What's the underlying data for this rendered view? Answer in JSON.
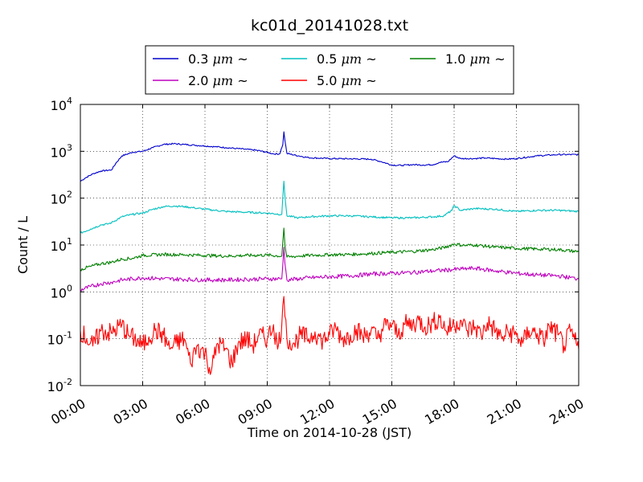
{
  "chart_data": {
    "type": "line",
    "title": "kc01d_20141028.txt",
    "xlabel": "Time on 2014-10-28 (JST)",
    "ylabel": "Count / L",
    "y_scale": "log",
    "ylim": [
      0.01,
      10000
    ],
    "y_ticks": [
      {
        "base": "10",
        "exp": "-2",
        "value": 0.01
      },
      {
        "base": "10",
        "exp": "-1",
        "value": 0.1
      },
      {
        "base": "10",
        "exp": "0",
        "value": 1
      },
      {
        "base": "10",
        "exp": "1",
        "value": 10
      },
      {
        "base": "10",
        "exp": "2",
        "value": 100
      },
      {
        "base": "10",
        "exp": "3",
        "value": 1000
      },
      {
        "base": "10",
        "exp": "4",
        "value": 10000
      }
    ],
    "x_ticks": [
      "00:00",
      "03:00",
      "06:00",
      "09:00",
      "12:00",
      "15:00",
      "18:00",
      "21:00",
      "24:00"
    ],
    "grid": true,
    "legend_position": "top-center",
    "series": [
      {
        "name": "0.3 μm ~",
        "legend_num": "0.3",
        "legend_unit": "μm",
        "legend_tail": "~",
        "color": "#0000cc",
        "points": [
          [
            0,
            230
          ],
          [
            0.3,
            280
          ],
          [
            0.6,
            330
          ],
          [
            1.0,
            380
          ],
          [
            1.5,
            400
          ],
          [
            1.7,
            550
          ],
          [
            2.0,
            800
          ],
          [
            2.5,
            950
          ],
          [
            3.0,
            1000
          ],
          [
            3.5,
            1200
          ],
          [
            4.0,
            1400
          ],
          [
            4.5,
            1450
          ],
          [
            5.0,
            1400
          ],
          [
            5.5,
            1350
          ],
          [
            6.0,
            1300
          ],
          [
            6.5,
            1250
          ],
          [
            7.0,
            1200
          ],
          [
            7.5,
            1150
          ],
          [
            8.0,
            1100
          ],
          [
            8.5,
            1050
          ],
          [
            9.0,
            950
          ],
          [
            9.3,
            880
          ],
          [
            9.6,
            880
          ],
          [
            9.75,
            1400
          ],
          [
            9.8,
            2600
          ],
          [
            9.85,
            1700
          ],
          [
            9.95,
            900
          ],
          [
            10.5,
            800
          ],
          [
            11.0,
            730
          ],
          [
            12.0,
            700
          ],
          [
            13.0,
            690
          ],
          [
            14.0,
            680
          ],
          [
            14.5,
            600
          ],
          [
            15.0,
            510
          ],
          [
            15.5,
            500
          ],
          [
            16.0,
            520
          ],
          [
            16.5,
            510
          ],
          [
            17.0,
            520
          ],
          [
            17.3,
            580
          ],
          [
            17.7,
            600
          ],
          [
            18.0,
            800
          ],
          [
            18.3,
            700
          ],
          [
            19.0,
            700
          ],
          [
            19.5,
            720
          ],
          [
            20.0,
            700
          ],
          [
            20.5,
            680
          ],
          [
            21.0,
            700
          ],
          [
            22.0,
            800
          ],
          [
            23.0,
            850
          ],
          [
            24.0,
            850
          ]
        ]
      },
      {
        "name": "0.5 μm ~",
        "legend_num": "0.5",
        "legend_unit": "μm",
        "legend_tail": "~",
        "color": "#00bfbf",
        "points": [
          [
            0,
            18
          ],
          [
            0.5,
            22
          ],
          [
            1.0,
            27
          ],
          [
            1.3,
            28
          ],
          [
            1.5,
            30
          ],
          [
            2.0,
            40
          ],
          [
            2.5,
            45
          ],
          [
            3.0,
            48
          ],
          [
            3.5,
            58
          ],
          [
            4.0,
            66
          ],
          [
            4.5,
            68
          ],
          [
            5.0,
            66
          ],
          [
            5.5,
            62
          ],
          [
            6.0,
            58
          ],
          [
            6.5,
            55
          ],
          [
            7.0,
            52
          ],
          [
            8.0,
            50
          ],
          [
            9.0,
            48
          ],
          [
            9.7,
            45
          ],
          [
            9.8,
            230
          ],
          [
            9.85,
            110
          ],
          [
            9.95,
            42
          ],
          [
            10.5,
            38
          ],
          [
            11.0,
            40
          ],
          [
            12.0,
            42
          ],
          [
            13.0,
            42
          ],
          [
            14.0,
            40
          ],
          [
            15.0,
            38
          ],
          [
            16.0,
            38
          ],
          [
            17.0,
            40
          ],
          [
            17.5,
            42
          ],
          [
            17.9,
            55
          ],
          [
            18.0,
            70
          ],
          [
            18.3,
            55
          ],
          [
            19.0,
            60
          ],
          [
            20.0,
            58
          ],
          [
            21.0,
            52
          ],
          [
            22.0,
            55
          ],
          [
            23.0,
            55
          ],
          [
            24.0,
            52
          ]
        ]
      },
      {
        "name": "1.0 μm ~",
        "legend_num": "1.0",
        "legend_unit": "μm",
        "legend_tail": "~",
        "color": "#008000",
        "points": [
          [
            0,
            3
          ],
          [
            0.5,
            3.5
          ],
          [
            1.0,
            4
          ],
          [
            1.5,
            4.3
          ],
          [
            2.0,
            5
          ],
          [
            2.5,
            5.2
          ],
          [
            3.0,
            6
          ],
          [
            4.0,
            6.3
          ],
          [
            5.0,
            6.2
          ],
          [
            6.0,
            6
          ],
          [
            7.0,
            5.8
          ],
          [
            8.0,
            6
          ],
          [
            9.0,
            6.1
          ],
          [
            9.7,
            5.8
          ],
          [
            9.8,
            23
          ],
          [
            9.85,
            10
          ],
          [
            9.95,
            5.5
          ],
          [
            10.5,
            5.8
          ],
          [
            11.0,
            6
          ],
          [
            12.0,
            6.2
          ],
          [
            13.0,
            6.3
          ],
          [
            14.0,
            6.6
          ],
          [
            15.0,
            7
          ],
          [
            16.0,
            7.3
          ],
          [
            17.0,
            8
          ],
          [
            17.5,
            8.8
          ],
          [
            18.0,
            10.5
          ],
          [
            18.5,
            9.8
          ],
          [
            19.0,
            10
          ],
          [
            20.0,
            9
          ],
          [
            21.0,
            8.5
          ],
          [
            22.0,
            8.2
          ],
          [
            23.0,
            8
          ],
          [
            24.0,
            7.2
          ]
        ]
      },
      {
        "name": "2.0 μm ~",
        "legend_num": "2.0",
        "legend_unit": "μm",
        "legend_tail": "~",
        "color": "#bf00bf",
        "points": [
          [
            0,
            1.1
          ],
          [
            0.5,
            1.3
          ],
          [
            1.0,
            1.5
          ],
          [
            1.5,
            1.6
          ],
          [
            2.0,
            1.8
          ],
          [
            3.0,
            2
          ],
          [
            4.0,
            1.9
          ],
          [
            5.0,
            1.85
          ],
          [
            6.0,
            1.8
          ],
          [
            7.0,
            1.8
          ],
          [
            8.0,
            1.85
          ],
          [
            9.0,
            1.9
          ],
          [
            9.7,
            1.9
          ],
          [
            9.8,
            9
          ],
          [
            9.85,
            4
          ],
          [
            9.95,
            1.8
          ],
          [
            10.5,
            1.9
          ],
          [
            11.0,
            2
          ],
          [
            12.0,
            2.1
          ],
          [
            13.0,
            2.2
          ],
          [
            14.0,
            2.4
          ],
          [
            15.0,
            2.5
          ],
          [
            16.0,
            2.6
          ],
          [
            17.0,
            2.8
          ],
          [
            18.0,
            3
          ],
          [
            18.5,
            3.1
          ],
          [
            19.0,
            3.2
          ],
          [
            20.0,
            2.8
          ],
          [
            21.0,
            2.5
          ],
          [
            22.0,
            2.3
          ],
          [
            23.0,
            2.2
          ],
          [
            24.0,
            1.9
          ]
        ]
      },
      {
        "name": "5.0 μm ~",
        "legend_num": "5.0",
        "legend_unit": "μm",
        "legend_tail": "~",
        "color": "#ff0000",
        "points": [
          [
            0,
            0.15
          ],
          [
            0.3,
            0.1
          ],
          [
            0.6,
            0.07
          ],
          [
            1.0,
            0.15
          ],
          [
            1.5,
            0.13
          ],
          [
            2.0,
            0.2
          ],
          [
            2.3,
            0.12
          ],
          [
            2.6,
            0.1
          ],
          [
            3.0,
            0.07
          ],
          [
            3.3,
            0.11
          ],
          [
            3.6,
            0.15
          ],
          [
            4.0,
            0.12
          ],
          [
            4.3,
            0.06
          ],
          [
            4.6,
            0.08
          ],
          [
            5.0,
            0.1
          ],
          [
            5.3,
            0.03
          ],
          [
            5.6,
            0.07
          ],
          [
            6.0,
            0.05
          ],
          [
            6.3,
            0.02
          ],
          [
            6.6,
            0.08
          ],
          [
            7.0,
            0.06
          ],
          [
            7.3,
            0.03
          ],
          [
            7.6,
            0.08
          ],
          [
            8.0,
            0.1
          ],
          [
            8.3,
            0.07
          ],
          [
            8.6,
            0.12
          ],
          [
            9.0,
            0.1
          ],
          [
            9.3,
            0.2
          ],
          [
            9.5,
            0.06
          ],
          [
            9.7,
            0.2
          ],
          [
            9.8,
            0.8
          ],
          [
            9.85,
            0.3
          ],
          [
            9.95,
            0.1
          ],
          [
            10.3,
            0.08
          ],
          [
            10.6,
            0.12
          ],
          [
            11.0,
            0.1
          ],
          [
            11.3,
            0.14
          ],
          [
            11.6,
            0.09
          ],
          [
            12.0,
            0.12
          ],
          [
            12.3,
            0.17
          ],
          [
            12.6,
            0.1
          ],
          [
            13.0,
            0.12
          ],
          [
            13.3,
            0.16
          ],
          [
            13.6,
            0.11
          ],
          [
            14.0,
            0.15
          ],
          [
            14.3,
            0.1
          ],
          [
            14.6,
            0.18
          ],
          [
            15.0,
            0.2
          ],
          [
            15.3,
            0.12
          ],
          [
            15.6,
            0.2
          ],
          [
            16.0,
            0.2
          ],
          [
            16.3,
            0.25
          ],
          [
            16.6,
            0.18
          ],
          [
            17.0,
            0.22
          ],
          [
            17.3,
            0.28
          ],
          [
            17.6,
            0.15
          ],
          [
            18.0,
            0.2
          ],
          [
            18.3,
            0.25
          ],
          [
            18.6,
            0.15
          ],
          [
            19.0,
            0.18
          ],
          [
            19.3,
            0.12
          ],
          [
            19.6,
            0.22
          ],
          [
            20.0,
            0.15
          ],
          [
            20.3,
            0.1
          ],
          [
            20.6,
            0.14
          ],
          [
            21.0,
            0.12
          ],
          [
            21.3,
            0.08
          ],
          [
            21.6,
            0.15
          ],
          [
            22.0,
            0.13
          ],
          [
            22.3,
            0.09
          ],
          [
            22.6,
            0.18
          ],
          [
            23.0,
            0.12
          ],
          [
            23.3,
            0.07
          ],
          [
            23.6,
            0.14
          ],
          [
            24.0,
            0.06
          ]
        ]
      }
    ]
  }
}
